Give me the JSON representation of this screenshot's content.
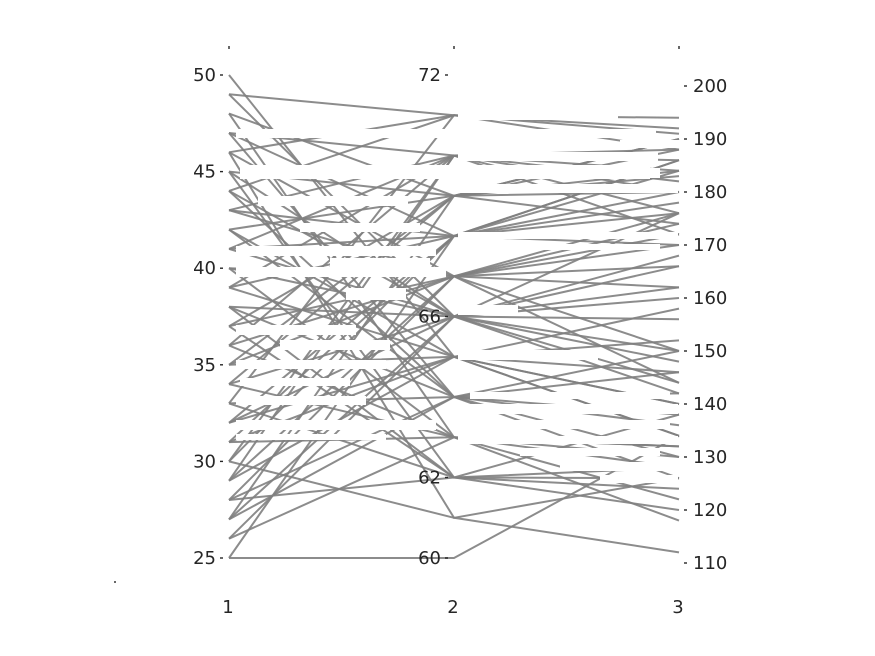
{
  "chart_data": {
    "type": "line",
    "subtype": "parallel-coordinates",
    "title": "",
    "xlabel": "",
    "ylabel": "",
    "x_categories": [
      "1",
      "2",
      "3"
    ],
    "axes": [
      {
        "category": "1",
        "ylim": [
          25,
          50
        ],
        "ticks": [
          25,
          30,
          35,
          40,
          45,
          50
        ],
        "tick_side": "left"
      },
      {
        "category": "2",
        "ylim": [
          60,
          72
        ],
        "ticks": [
          60,
          62,
          66,
          72
        ],
        "tick_side": "left"
      },
      {
        "category": "3",
        "ylim": [
          110,
          200
        ],
        "ticks": [
          110,
          120,
          130,
          140,
          150,
          160,
          170,
          180,
          190,
          200
        ],
        "tick_side": "right"
      }
    ],
    "line_color": "#7f7f7f",
    "grid": false,
    "legend": "none",
    "series": [
      {
        "values": [
          49,
          71,
          191
        ]
      },
      {
        "values": [
          48,
          69,
          183
        ]
      },
      {
        "values": [
          47,
          68,
          186
        ]
      },
      {
        "values": [
          46,
          71,
          188
        ]
      },
      {
        "values": [
          45,
          66,
          176
        ]
      },
      {
        "values": [
          44,
          64,
          142
        ]
      },
      {
        "values": [
          43,
          67,
          150
        ]
      },
      {
        "values": [
          42,
          65,
          158
        ]
      },
      {
        "values": [
          41,
          70,
          184
        ]
      },
      {
        "values": [
          40,
          63,
          130
        ]
      },
      {
        "values": [
          39,
          68,
          176
        ]
      },
      {
        "values": [
          38,
          66,
          160
        ]
      },
      {
        "values": [
          37,
          62,
          128
        ]
      },
      {
        "values": [
          36,
          67,
          172
        ]
      },
      {
        "values": [
          35,
          65,
          140
        ]
      },
      {
        "values": [
          34,
          69,
          190
        ]
      },
      {
        "values": [
          33,
          64,
          146
        ]
      },
      {
        "values": [
          32,
          66,
          168
        ]
      },
      {
        "values": [
          31,
          63,
          132
        ]
      },
      {
        "values": [
          30,
          68,
          180
        ]
      },
      {
        "values": [
          29,
          65,
          152
        ]
      },
      {
        "values": [
          28,
          67,
          174
        ]
      },
      {
        "values": [
          27,
          64,
          138
        ]
      },
      {
        "values": [
          26,
          66,
          162
        ]
      },
      {
        "values": [
          25,
          60,
          134
        ]
      },
      {
        "values": [
          25,
          68,
          186
        ]
      },
      {
        "values": [
          50,
          65,
          134
        ]
      },
      {
        "values": [
          48,
          63,
          122
        ]
      },
      {
        "values": [
          47,
          70,
          172
        ]
      },
      {
        "values": [
          46,
          67,
          162
        ]
      },
      {
        "values": [
          45,
          69,
          190
        ]
      },
      {
        "values": [
          44,
          66,
          144
        ]
      },
      {
        "values": [
          43,
          70,
          180
        ]
      },
      {
        "values": [
          42,
          64,
          126
        ]
      },
      {
        "values": [
          41,
          68,
          178
        ]
      },
      {
        "values": [
          40,
          66,
          150
        ]
      },
      {
        "values": [
          39,
          70,
          186
        ]
      },
      {
        "values": [
          38,
          64,
          136
        ]
      },
      {
        "values": [
          37,
          67,
          170
        ]
      },
      {
        "values": [
          36,
          63,
          118
        ]
      },
      {
        "values": [
          35,
          69,
          184
        ]
      },
      {
        "values": [
          34,
          66,
          148
        ]
      },
      {
        "values": [
          33,
          62,
          124
        ]
      },
      {
        "values": [
          32,
          68,
          172
        ]
      },
      {
        "values": [
          31,
          65,
          140
        ]
      },
      {
        "values": [
          30,
          61,
          112
        ]
      },
      {
        "values": [
          29,
          67,
          176
        ]
      },
      {
        "values": [
          28,
          64,
          130
        ]
      },
      {
        "values": [
          27,
          69,
          188
        ]
      },
      {
        "values": [
          26,
          63,
          128
        ]
      },
      {
        "values": [
          49,
          66,
          166
        ]
      },
      {
        "values": [
          47,
          64,
          150
        ]
      },
      {
        "values": [
          45,
          62,
          120
        ]
      },
      {
        "values": [
          43,
          68,
          184
        ]
      },
      {
        "values": [
          41,
          66,
          142
        ]
      },
      {
        "values": [
          39,
          65,
          134
        ]
      },
      {
        "values": [
          37,
          69,
          180
        ]
      },
      {
        "values": [
          35,
          67,
          166
        ]
      },
      {
        "values": [
          33,
          71,
          192
        ]
      },
      {
        "values": [
          31,
          68,
          170
        ]
      },
      {
        "values": [
          29,
          70,
          182
        ]
      },
      {
        "values": [
          27,
          66,
          156
        ]
      },
      {
        "values": [
          46,
          61,
          126
        ]
      },
      {
        "values": [
          44,
          71,
          194
        ]
      },
      {
        "values": [
          42,
          69,
          174
        ]
      },
      {
        "values": [
          40,
          67,
          144
        ]
      },
      {
        "values": [
          38,
          62,
          138
        ]
      },
      {
        "values": [
          36,
          70,
          188
        ]
      },
      {
        "values": [
          34,
          63,
          132
        ]
      },
      {
        "values": [
          32,
          65,
          146
        ]
      },
      {
        "values": [
          30,
          70,
          176
        ]
      },
      {
        "values": [
          28,
          62,
          126
        ]
      }
    ]
  }
}
